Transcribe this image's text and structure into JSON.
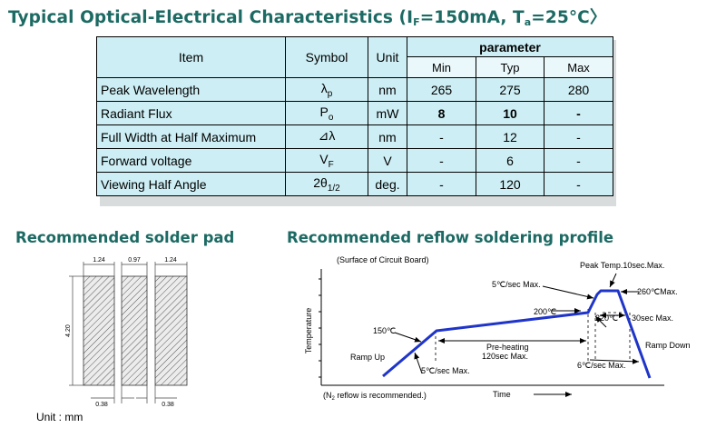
{
  "title_main": "Typical Optical-Electrical Characteristics (I",
  "title_if_sub": "F",
  "title_mid": "=150mA, T",
  "title_ta_sub": "a",
  "title_end": "=25°C〉",
  "table": {
    "headers": {
      "item": "Item",
      "symbol": "Symbol",
      "unit": "Unit",
      "parameter": "parameter",
      "min": "Min",
      "typ": "Typ",
      "max": "Max"
    },
    "rows": [
      {
        "item": "Peak Wavelength",
        "symbol_main": "λ",
        "symbol_sub": "p",
        "unit": "nm",
        "min": "265",
        "typ": "275",
        "max": "280"
      },
      {
        "item": "Radiant Flux",
        "symbol_main": "P",
        "symbol_sub": "o",
        "unit": "mW",
        "min": "8",
        "typ": "10",
        "max": "-"
      },
      {
        "item": "Full Width at Half Maximum",
        "symbol_main": "⊿λ",
        "symbol_sub": "",
        "unit": "nm",
        "min": "-",
        "typ": "12",
        "max": "-"
      },
      {
        "item": "Forward voltage",
        "symbol_main": "V",
        "symbol_sub": "F",
        "unit": "V",
        "min": "-",
        "typ": "6",
        "max": "-"
      },
      {
        "item": "Viewing Half Angle",
        "symbol_main": "2θ",
        "symbol_sub": "1/2",
        "unit": "deg.",
        "min": "-",
        "typ": "120",
        "max": "-"
      }
    ]
  },
  "solder_pad": {
    "heading": "Recommended solder pad",
    "dim_pad_width": "1.24",
    "dim_center_width": "0.97",
    "dim_pad_width_right": "1.24",
    "dim_height": "4.20",
    "dim_gap_left": "0.38",
    "dim_gap_right": "0.38",
    "unit_label": "Unit : mm"
  },
  "reflow": {
    "heading": "Recommended reflow soldering profile",
    "surface_label": "(Surface of Circuit Board)",
    "peak_label": "Peak Temp.10sec.Max.",
    "rate_up_label": "5℃/sec Max.",
    "t260_label": "260℃Max.",
    "t200_label": "200℃",
    "t220_label": "220℃",
    "t30_label": "30sec Max.",
    "t150_label": "150℃",
    "preheat_label": "Pre-heating",
    "preheat_time_label": "120sec Max.",
    "ramp_up_label": "Ramp Up",
    "ramp_up_rate_label": "5℃/sec Max.",
    "cool_rate_label": "6℃/sec Max.",
    "ramp_down_label": "Ramp Down",
    "n2_label_pre": "(N",
    "n2_label_sub": "2",
    "n2_label_post": " reflow is recommended.)",
    "ylabel": "Temperature",
    "xlabel": "Time",
    "line_color": "#1f35c9"
  }
}
